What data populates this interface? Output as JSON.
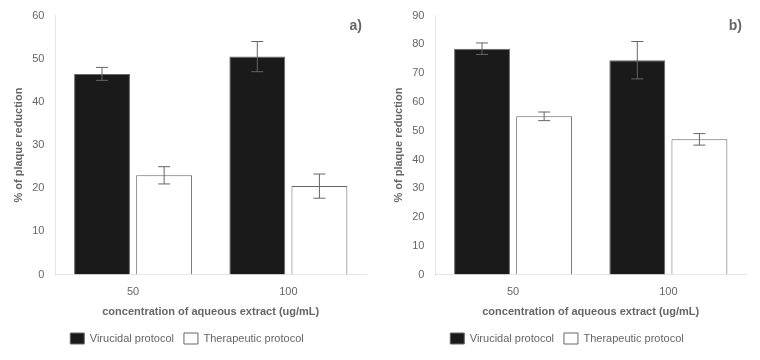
{
  "chart_data": [
    {
      "type": "bar",
      "annotation": "a)",
      "categories": [
        "50",
        "100"
      ],
      "series": [
        {
          "name": "Virucidal protocol",
          "color": "#1a1a1a",
          "values": [
            46.5,
            50.5
          ],
          "errors": [
            1.5,
            3.5
          ]
        },
        {
          "name": "Therapeutic protocol",
          "color": "#ffffff",
          "values": [
            23.0,
            20.5
          ],
          "errors": [
            2.0,
            2.8
          ]
        }
      ],
      "ylim": [
        0,
        60
      ],
      "yticks": [
        0,
        10,
        20,
        30,
        40,
        50,
        60
      ],
      "ylabel": "% of plaque reduction",
      "xlabel": "concentration of aqueous extract (ug/mL)",
      "grid": false,
      "legend": "bottom"
    },
    {
      "type": "bar",
      "annotation": "b)",
      "categories": [
        "50",
        "100"
      ],
      "series": [
        {
          "name": "Virucidal protocol",
          "color": "#1a1a1a",
          "values": [
            78.5,
            74.5
          ],
          "errors": [
            2.0,
            6.5
          ]
        },
        {
          "name": "Therapeutic protocol",
          "color": "#ffffff",
          "values": [
            55.0,
            47.0
          ],
          "errors": [
            1.5,
            2.0
          ]
        }
      ],
      "ylim": [
        0,
        90
      ],
      "yticks": [
        0,
        10,
        20,
        30,
        40,
        50,
        60,
        70,
        80,
        90
      ],
      "ylabel": "% of plaque reduction",
      "xlabel": "concentration of aqueous extract (ug/mL)",
      "grid": false,
      "legend": "bottom"
    }
  ]
}
